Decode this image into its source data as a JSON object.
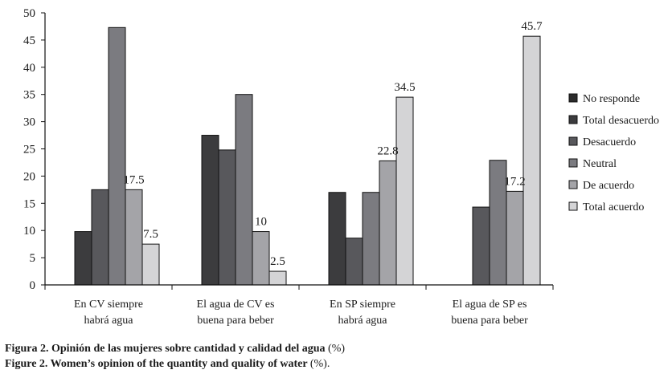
{
  "chart_data": {
    "type": "bar",
    "title": "",
    "xlabel": "",
    "ylabel": "",
    "ylim": [
      0,
      50
    ],
    "yticks": [
      0,
      5,
      10,
      15,
      20,
      25,
      30,
      35,
      40,
      45,
      50
    ],
    "grid": false,
    "legend_position": "right",
    "categories": [
      [
        "En CV siempre",
        "habrá agua"
      ],
      [
        "El agua de CV es",
        "buena para beber"
      ],
      [
        "En SP siempre",
        "habrá agua"
      ],
      [
        "El agua de SP es",
        "buena para beber"
      ]
    ],
    "series": [
      {
        "name": "No responde",
        "color": "#2b2b2b",
        "values": [
          0,
          0,
          0,
          0
        ]
      },
      {
        "name": "Total desacuerdo",
        "color": "#3c3c3e",
        "values": [
          9.8,
          27.5,
          17.0,
          0
        ]
      },
      {
        "name": "Desacuerdo",
        "color": "#58585c",
        "values": [
          17.5,
          24.8,
          8.6,
          14.3
        ]
      },
      {
        "name": "Neutral",
        "color": "#7b7b80",
        "values": [
          47.3,
          35.0,
          17.0,
          22.9
        ]
      },
      {
        "name": "De acuerdo",
        "color": "#a4a4a8",
        "values": [
          17.5,
          9.8,
          22.8,
          17.2
        ]
      },
      {
        "name": "Total acuerdo",
        "color": "#d4d4d6",
        "values": [
          7.5,
          2.5,
          34.5,
          45.7
        ]
      }
    ],
    "data_labels": [
      {
        "category": 0,
        "series": 4,
        "text": "17.5"
      },
      {
        "category": 0,
        "series": 5,
        "text": "7.5"
      },
      {
        "category": 1,
        "series": 4,
        "text": "10"
      },
      {
        "category": 1,
        "series": 5,
        "text": "2.5"
      },
      {
        "category": 2,
        "series": 4,
        "text": "22.8"
      },
      {
        "category": 2,
        "series": 5,
        "text": "34.5"
      },
      {
        "category": 3,
        "series": 4,
        "text": "17.2"
      },
      {
        "category": 3,
        "series": 5,
        "text": "45.7"
      }
    ]
  },
  "caption": {
    "line1_main": "Figura 2. Opinión de las mujeres sobre cantidad y calidad del agua",
    "line1_unit": "(%)",
    "line2_main": "Figure 2. Women’s opinion of the quantity and quality of water",
    "line2_unit": "(%)."
  }
}
